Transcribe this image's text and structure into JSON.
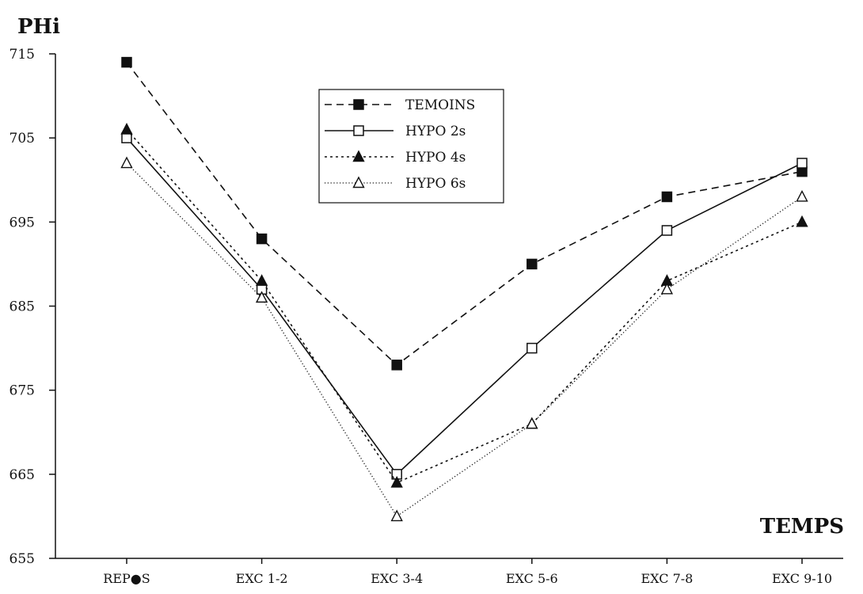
{
  "chart_data": {
    "type": "line",
    "ylabel": "PHi",
    "xlabel": "TEMPS",
    "ylim": [
      655,
      715
    ],
    "yticks": [
      655,
      665,
      675,
      685,
      695,
      705,
      715
    ],
    "categories": [
      "REP●S",
      "EXC 1-2",
      "EXC 3-4",
      "EXC 5-6",
      "EXC 7-8",
      "EXC 9-10"
    ],
    "legend_position": "top-center",
    "grid": false,
    "series": [
      {
        "name": "TEMOINS",
        "values": [
          714,
          693,
          678,
          690,
          698,
          701
        ],
        "line_style": "dashed",
        "marker": "filled-square",
        "color": "#111111"
      },
      {
        "name": "HYPO 2s",
        "values": [
          705,
          687,
          665,
          680,
          694,
          702
        ],
        "line_style": "solid",
        "marker": "open-square",
        "color": "#111111"
      },
      {
        "name": "HYPO 4s",
        "values": [
          706,
          688,
          664,
          671,
          688,
          695
        ],
        "line_style": "dotted",
        "marker": "filled-triangle",
        "color": "#111111"
      },
      {
        "name": "HYPO 6s",
        "values": [
          702,
          686,
          660,
          671,
          687,
          698
        ],
        "line_style": "fine-dotted",
        "marker": "open-triangle",
        "color": "#111111"
      }
    ]
  }
}
